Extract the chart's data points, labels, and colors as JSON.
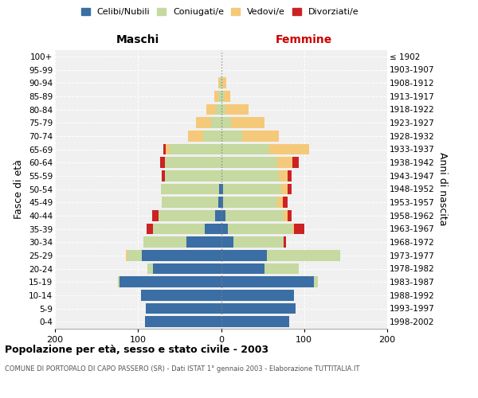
{
  "age_groups": [
    "0-4",
    "5-9",
    "10-14",
    "15-19",
    "20-24",
    "25-29",
    "30-34",
    "35-39",
    "40-44",
    "45-49",
    "50-54",
    "55-59",
    "60-64",
    "65-69",
    "70-74",
    "75-79",
    "80-84",
    "85-89",
    "90-94",
    "95-99",
    "100+"
  ],
  "birth_years": [
    "1998-2002",
    "1993-1997",
    "1988-1992",
    "1983-1987",
    "1978-1982",
    "1973-1977",
    "1968-1972",
    "1963-1967",
    "1958-1962",
    "1953-1957",
    "1948-1952",
    "1943-1947",
    "1938-1942",
    "1933-1937",
    "1928-1932",
    "1923-1927",
    "1918-1922",
    "1913-1917",
    "1908-1912",
    "1903-1907",
    "≤ 1902"
  ],
  "maschi": {
    "celibi": [
      92,
      91,
      96,
      122,
      82,
      95,
      42,
      20,
      7,
      3,
      2,
      0,
      0,
      0,
      0,
      0,
      0,
      0,
      0,
      0,
      0
    ],
    "coniugati": [
      0,
      0,
      0,
      2,
      7,
      18,
      52,
      62,
      68,
      68,
      70,
      68,
      68,
      62,
      22,
      12,
      6,
      3,
      1,
      0,
      0
    ],
    "vedovi": [
      0,
      0,
      0,
      0,
      0,
      2,
      0,
      0,
      0,
      0,
      0,
      0,
      0,
      5,
      18,
      18,
      12,
      5,
      2,
      0,
      0
    ],
    "divorziati": [
      0,
      0,
      0,
      0,
      0,
      0,
      0,
      8,
      8,
      0,
      0,
      3,
      5,
      3,
      0,
      0,
      0,
      0,
      0,
      0,
      0
    ]
  },
  "femmine": {
    "nubili": [
      82,
      90,
      88,
      112,
      52,
      55,
      15,
      8,
      5,
      2,
      2,
      0,
      0,
      0,
      0,
      0,
      0,
      0,
      0,
      0,
      0
    ],
    "coniugate": [
      0,
      0,
      0,
      5,
      42,
      88,
      60,
      78,
      70,
      66,
      70,
      70,
      68,
      58,
      25,
      12,
      5,
      3,
      1,
      0,
      0
    ],
    "vedove": [
      0,
      0,
      0,
      0,
      0,
      0,
      0,
      2,
      5,
      6,
      8,
      10,
      18,
      48,
      45,
      40,
      28,
      8,
      5,
      0,
      0
    ],
    "divorziate": [
      0,
      0,
      0,
      0,
      0,
      0,
      3,
      12,
      5,
      6,
      5,
      5,
      8,
      0,
      0,
      0,
      0,
      0,
      0,
      0,
      0
    ]
  },
  "colors": {
    "celibi": "#3a6ea5",
    "coniugati": "#c5d9a0",
    "vedovi": "#f5c97a",
    "divorziati": "#cc2222"
  },
  "xlim": 200,
  "title": "Popolazione per età, sesso e stato civile - 2003",
  "subtitle": "COMUNE DI PORTOPALO DI CAPO PASSERO (SR) - Dati ISTAT 1° gennaio 2003 - Elaborazione TUTTITALIA.IT",
  "xlabel_left": "Maschi",
  "xlabel_right": "Femmine",
  "ylabel_left": "Fasce di età",
  "ylabel_right": "Anni di nascita",
  "legend_labels": [
    "Celibi/Nubili",
    "Coniugati/e",
    "Vedovi/e",
    "Divorziati/e"
  ],
  "bg_color": "#f0f0f0",
  "fig_color": "#ffffff"
}
